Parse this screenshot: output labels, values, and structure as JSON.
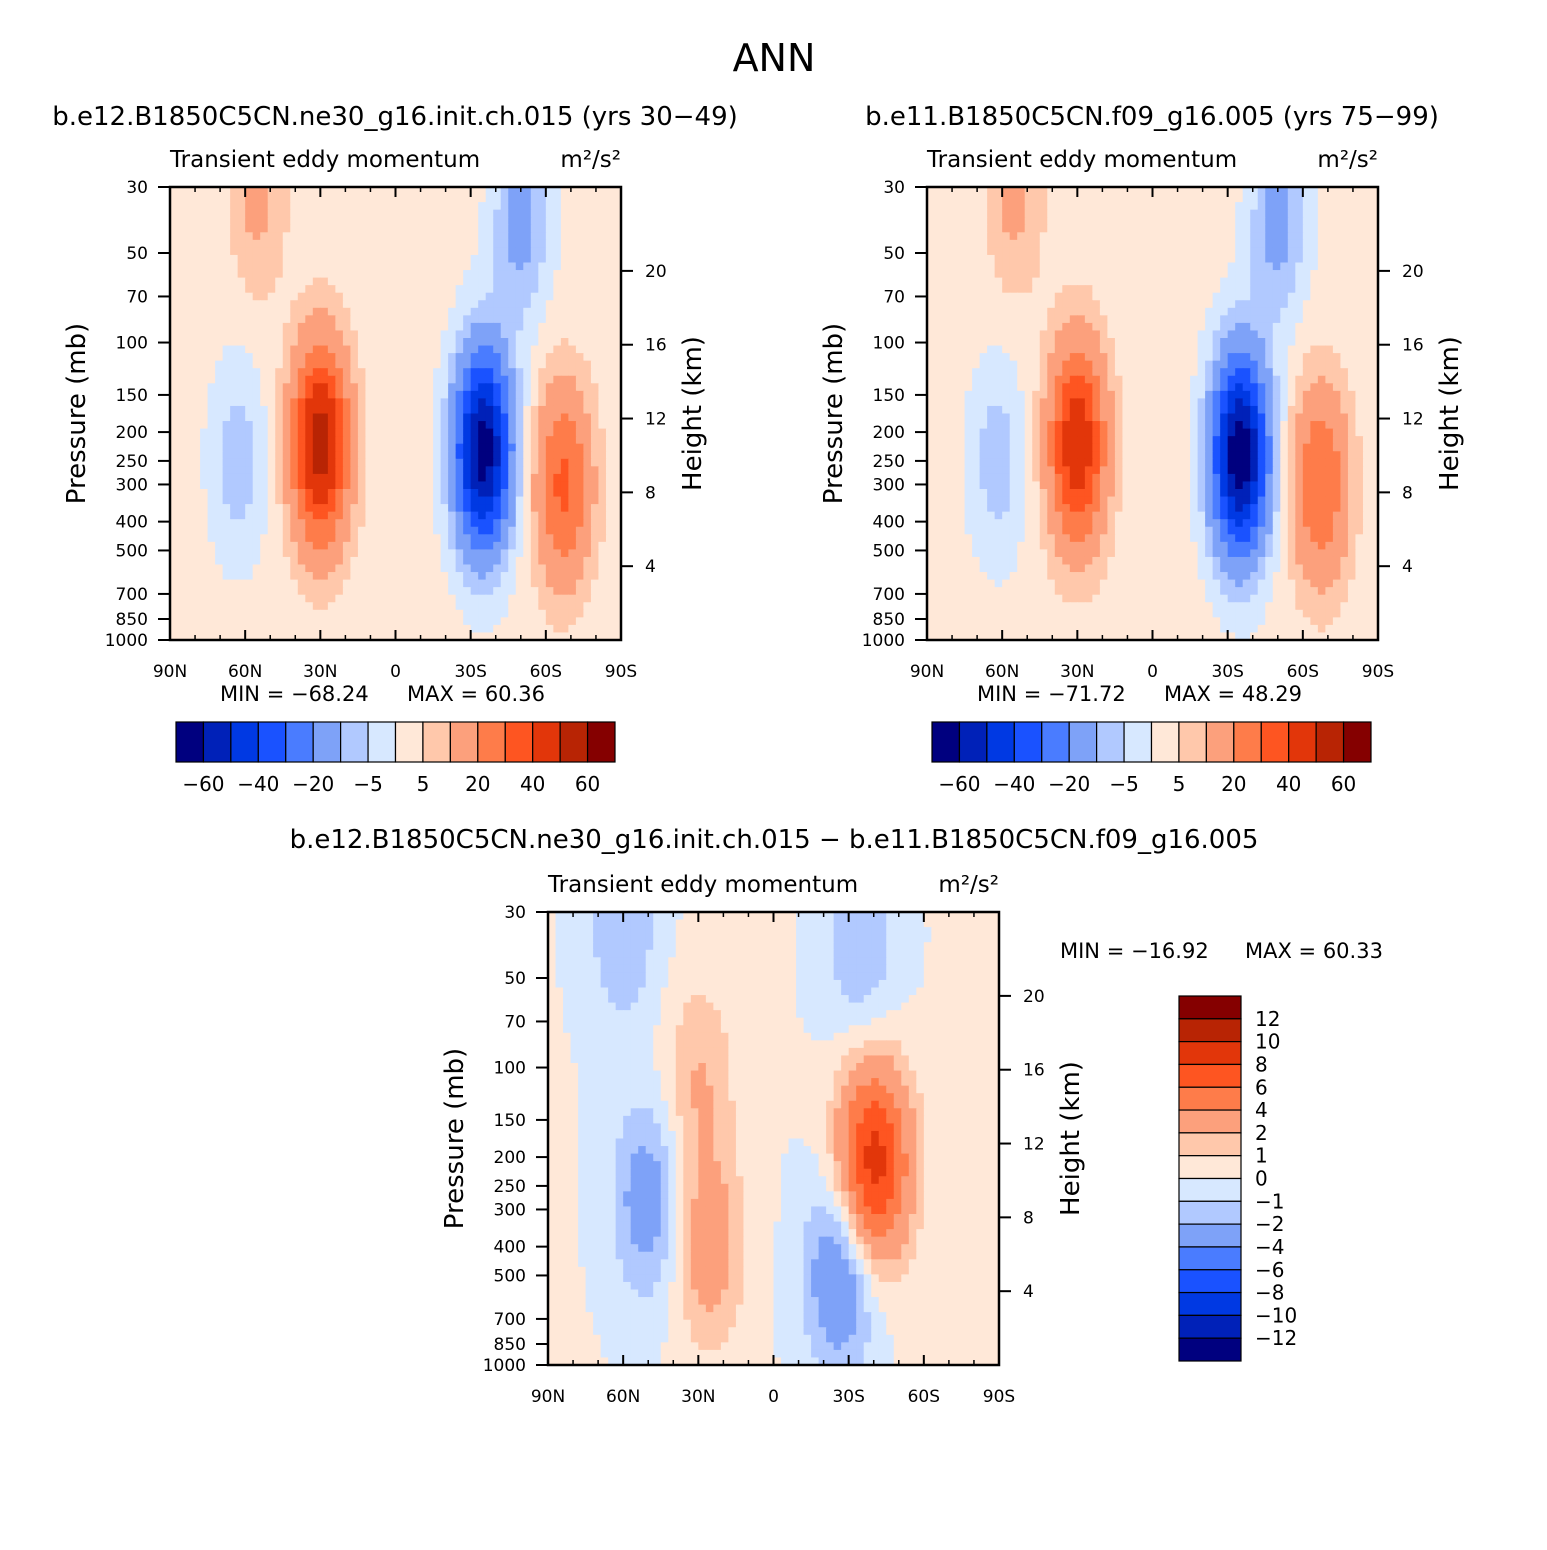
{
  "page_title": "ANN",
  "colors": {
    "palette": [
      "#00007f",
      "#0021b8",
      "#0039e3",
      "#1a52ff",
      "#4a7cff",
      "#7ea2f8",
      "#b1c9ff",
      "#d7e8ff",
      "#ffe8d8",
      "#ffc8ab",
      "#fca07c",
      "#fe7c4a",
      "#fe5521",
      "#e2360a",
      "#b82404",
      "#850000"
    ]
  },
  "chart_data": [
    {
      "id": "p1",
      "type": "contour",
      "title": "b.e12.B1850C5CN.ne30_g16.init.ch.015 (yrs 30−49)",
      "subtitle": "Transient  eddy  momentum",
      "units": "m²/s²",
      "ylabel": "Pressure  (mb)",
      "y2label": "Height  (km)",
      "x_tick_labels": [
        "90N",
        "60N",
        "30N",
        "0",
        "30S",
        "60S",
        "90S"
      ],
      "x_ticks_deg": [
        90,
        60,
        30,
        0,
        -30,
        -60,
        -90
      ],
      "y_tick_labels": [
        "30",
        "50",
        "70",
        "100",
        "150",
        "200",
        "250",
        "300",
        "400",
        "500",
        "700",
        "850",
        "1000"
      ],
      "y_ticks_mb": [
        30,
        50,
        70,
        100,
        150,
        200,
        250,
        300,
        400,
        500,
        700,
        850,
        1000
      ],
      "y2_tick_labels": [
        "20",
        "16",
        "12",
        "8",
        "4"
      ],
      "y2_ticks_km": [
        20,
        16,
        12,
        8,
        4
      ],
      "xlim_deg": [
        90,
        -90
      ],
      "ylim_mb": [
        1000,
        30
      ],
      "log_pressure": true,
      "min_label": "MIN  =  −68.24",
      "max_label": "MAX  =   60.36",
      "colorbar_labels": [
        "−60",
        "−40",
        "−20",
        "−5",
        "5",
        "20",
        "40",
        "60"
      ],
      "features": [
        {
          "lat": 30,
          "p": 220,
          "value": 55
        },
        {
          "lat": -35,
          "p": 230,
          "value": -68
        },
        {
          "lat": -67,
          "p": 300,
          "value": 30
        },
        {
          "lat": 63,
          "p": 250,
          "value": -10
        },
        {
          "lat": 55,
          "p": 32,
          "value": 10
        },
        {
          "lat": -50,
          "p": 40,
          "value": -15
        }
      ]
    },
    {
      "id": "p2",
      "type": "contour",
      "title": "b.e11.B1850C5CN.f09_g16.005 (yrs 75−99)",
      "subtitle": "Transient  eddy  momentum",
      "units": "m²/s²",
      "ylabel": "Pressure  (mb)",
      "y2label": "Height  (km)",
      "x_tick_labels": [
        "90N",
        "60N",
        "30N",
        "0",
        "30S",
        "60S",
        "90S"
      ],
      "x_ticks_deg": [
        90,
        60,
        30,
        0,
        -30,
        -60,
        -90
      ],
      "y_tick_labels": [
        "30",
        "50",
        "70",
        "100",
        "150",
        "200",
        "250",
        "300",
        "400",
        "500",
        "700",
        "850",
        "1000"
      ],
      "y_ticks_mb": [
        30,
        50,
        70,
        100,
        150,
        200,
        250,
        300,
        400,
        500,
        700,
        850,
        1000
      ],
      "y2_tick_labels": [
        "20",
        "16",
        "12",
        "8",
        "4"
      ],
      "y2_ticks_km": [
        20,
        16,
        12,
        8,
        4
      ],
      "xlim_deg": [
        90,
        -90
      ],
      "ylim_mb": [
        1000,
        30
      ],
      "log_pressure": true,
      "min_label": "MIN  =  −71.72",
      "max_label": "MAX  =   48.29",
      "colorbar_labels": [
        "−60",
        "−40",
        "−20",
        "−5",
        "5",
        "20",
        "40",
        "60"
      ],
      "features": [
        {
          "lat": 30,
          "p": 220,
          "value": 48
        },
        {
          "lat": -35,
          "p": 240,
          "value": -71
        },
        {
          "lat": -67,
          "p": 300,
          "value": 28
        },
        {
          "lat": 62,
          "p": 250,
          "value": -10
        },
        {
          "lat": 55,
          "p": 32,
          "value": 10
        },
        {
          "lat": -50,
          "p": 40,
          "value": -15
        }
      ]
    },
    {
      "id": "p3",
      "type": "contour",
      "title": "b.e12.B1850C5CN.ne30_g16.init.ch.015 − b.e11.B1850C5CN.f09_g16.005",
      "subtitle": "Transient  eddy  momentum",
      "units": "m²/s²",
      "ylabel": "Pressure  (mb)",
      "y2label": "Height  (km)",
      "x_tick_labels": [
        "90N",
        "60N",
        "30N",
        "0",
        "30S",
        "60S",
        "90S"
      ],
      "x_ticks_deg": [
        90,
        60,
        30,
        0,
        -30,
        -60,
        -90
      ],
      "y_tick_labels": [
        "30",
        "50",
        "70",
        "100",
        "150",
        "200",
        "250",
        "300",
        "400",
        "500",
        "700",
        "850",
        "1000"
      ],
      "y_ticks_mb": [
        30,
        50,
        70,
        100,
        150,
        200,
        250,
        300,
        400,
        500,
        700,
        850,
        1000
      ],
      "y2_tick_labels": [
        "20",
        "16",
        "12",
        "8",
        "4"
      ],
      "y2_ticks_km": [
        20,
        16,
        12,
        8,
        4
      ],
      "xlim_deg": [
        90,
        -90
      ],
      "ylim_mb": [
        1000,
        30
      ],
      "log_pressure": true,
      "min_label": "MIN  =  −16.92",
      "max_label": "MAX  =   60.33",
      "colorbar_labels": [
        "12",
        "10",
        "8",
        "6",
        "4",
        "2",
        "1",
        "0",
        "−1",
        "−2",
        "−4",
        "−6",
        "−8",
        "−10",
        "−12"
      ],
      "features": [
        {
          "lat": -40,
          "p": 210,
          "value": 9
        },
        {
          "lat": 26,
          "p": 400,
          "value": 3
        },
        {
          "lat": -27,
          "p": 480,
          "value": -4
        },
        {
          "lat": 50,
          "p": 280,
          "value": -3
        },
        {
          "lat": 60,
          "p": 35,
          "value": -2
        },
        {
          "lat": -35,
          "p": 40,
          "value": -2
        },
        {
          "lat": 30,
          "p": 110,
          "value": 2
        }
      ]
    }
  ]
}
